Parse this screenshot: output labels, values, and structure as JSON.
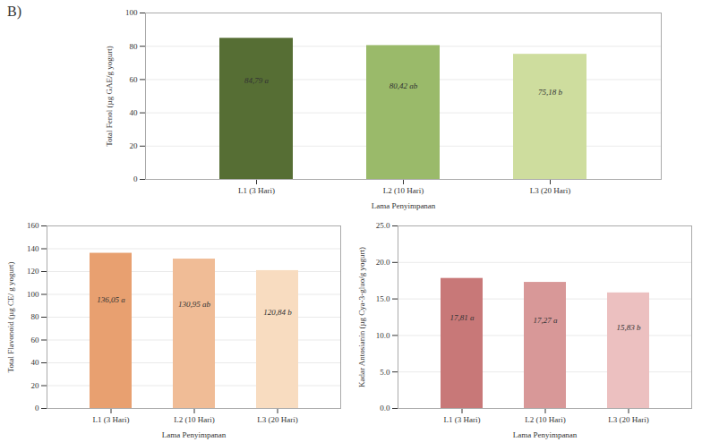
{
  "title": "B)",
  "chart_data": [
    {
      "type": "bar",
      "categories": [
        "L1 (3 Hari)",
        "L2 (10 Hari)",
        "L3 (20 Hari)"
      ],
      "values": [
        84.79,
        80.42,
        75.18
      ],
      "value_labels": [
        "84,79 a",
        "80,42 ab",
        "75,18 b"
      ],
      "data_labels": true,
      "colors": [
        "#566e34",
        "#9aba6a",
        "#cedd9e"
      ],
      "xlabel": "Lama Penyimpanan",
      "ylabel": "Total Fenol (µg GAE/g yogurt)",
      "ylim": [
        0,
        100
      ],
      "yticks": [
        0,
        20,
        40,
        60,
        80,
        100
      ],
      "grid": true
    },
    {
      "type": "bar",
      "categories": [
        "L1 (3 Hari)",
        "L2 (10 Hari)",
        "L3 (20 Hari)"
      ],
      "values": [
        136.05,
        130.95,
        120.84
      ],
      "value_labels": [
        "136,05 a",
        "130,95 ab",
        "120,84 b"
      ],
      "data_labels": true,
      "colors": [
        "#e8a070",
        "#f0bc96",
        "#f8dcc0"
      ],
      "xlabel": "Lama Penyimpanan",
      "ylabel": "Total Flavonoid (µg CE/ g yogurt)",
      "ylim": [
        0,
        160
      ],
      "yticks": [
        0,
        20,
        40,
        60,
        80,
        100,
        120,
        140,
        160
      ],
      "grid": true
    },
    {
      "type": "bar",
      "categories": [
        "L1 (3 Hari)",
        "L2 (10 Hari)",
        "L3 (20 Hari)"
      ],
      "values": [
        17.81,
        17.27,
        15.83
      ],
      "value_labels": [
        "17,81 a",
        "17,27 a",
        "15,83 b"
      ],
      "data_labels": true,
      "colors": [
        "#c87878",
        "#d89898",
        "#ecc0c0"
      ],
      "xlabel": "Lama Penyimpanan",
      "ylabel": "Kadar Antosianin (µg Cya-3-gluo/g yogurt)",
      "ylim": [
        0,
        25
      ],
      "yticks": [
        {
          "value": 0,
          "label": "0.0"
        },
        {
          "value": 5,
          "label": "5.0"
        },
        {
          "value": 10,
          "label": "10.0"
        },
        {
          "value": 15,
          "label": "15.0"
        },
        {
          "value": 20,
          "label": "20.0"
        },
        {
          "value": 25,
          "label": "25.0"
        }
      ],
      "grid": true
    }
  ]
}
